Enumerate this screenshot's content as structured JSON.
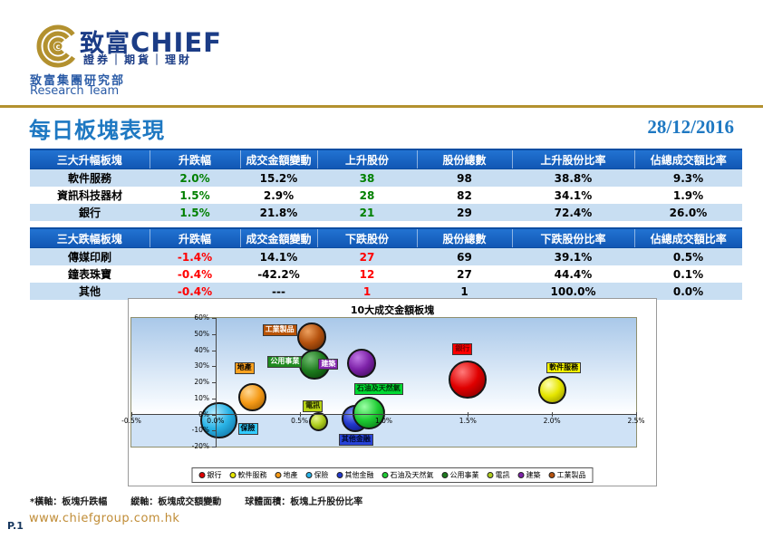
{
  "brand": {
    "name_cn": "致富",
    "name_en": "CHIEF",
    "tagline": "證券｜期貨｜理財",
    "dept_cn": "致富集團研究部",
    "dept_en": "Research Team",
    "gold_color": "#b3912f",
    "blue_color": "#1b3c86"
  },
  "page": {
    "title": "每日板塊表現",
    "date": "28/12/2016",
    "title_color": "#1e78c2"
  },
  "tables": {
    "gainers": {
      "headers": [
        "三大升幅板塊",
        "升跌幅",
        "成交金額變動",
        "上升股份",
        "股份總數",
        "上升股份比率",
        "佔總成交額比率"
      ],
      "rows": [
        [
          "軟件服務",
          "2.0%",
          "15.2%",
          "38",
          "98",
          "38.8%",
          "9.3%"
        ],
        [
          "資訊科技器材",
          "1.5%",
          "2.9%",
          "28",
          "82",
          "34.1%",
          "1.9%"
        ],
        [
          "銀行",
          "1.5%",
          "21.8%",
          "21",
          "29",
          "72.4%",
          "26.0%"
        ]
      ],
      "accent_color": "#008000"
    },
    "losers": {
      "headers": [
        "三大跌幅板塊",
        "升跌幅",
        "成交金額變動",
        "下跌股份",
        "股份總數",
        "下跌股份比率",
        "佔總成交額比率"
      ],
      "rows": [
        [
          "傳媒印刷",
          "-1.4%",
          "14.1%",
          "27",
          "69",
          "39.1%",
          "0.5%"
        ],
        [
          "鐘表珠寶",
          "-0.4%",
          "-42.2%",
          "12",
          "27",
          "44.4%",
          "0.1%"
        ],
        [
          "其他",
          "-0.4%",
          "---",
          "1",
          "1",
          "100.0%",
          "0.0%"
        ]
      ],
      "accent_color": "#ff0000"
    }
  },
  "chart_data": {
    "type": "scatter",
    "subtype": "bubble",
    "title": "10大成交金額板塊",
    "xlabel": "板塊升跌幅",
    "ylabel": "板塊成交額變動",
    "size_label": "板塊上升股份比率",
    "xlim": [
      -0.5,
      2.5
    ],
    "ylim": [
      -20,
      60
    ],
    "x_ticks": [
      "-0.5%",
      "0.0%",
      "0.5%",
      "1.0%",
      "1.5%",
      "2.0%",
      "2.5%"
    ],
    "y_ticks": [
      "60%",
      "50%",
      "40%",
      "30%",
      "20%",
      "10%",
      "0%",
      "-10%",
      "-20%"
    ],
    "grid": false,
    "legend_position": "bottom",
    "series": [
      {
        "name": "銀行",
        "x": 1.5,
        "y": 21.8,
        "size": 72.4,
        "color": "#e00000",
        "light": "#ff7a7a",
        "dark": "#7a0000",
        "label_bg": "#ff0000",
        "label_fg": "#7a0000",
        "label_dx": -17,
        "label_dy": -40,
        "z": 9
      },
      {
        "name": "軟件服務",
        "x": 2.0,
        "y": 15.2,
        "size": 38.8,
        "color": "#e6e600",
        "light": "#ffffb4",
        "dark": "#8f8f00",
        "label_bg": "#ffff00",
        "label_fg": "#000000",
        "label_dx": -6,
        "label_dy": -31,
        "z": 10
      },
      {
        "name": "地產",
        "x": 0.22,
        "y": 10.8,
        "size": 39.0,
        "color": "#f59a17",
        "light": "#ffd894",
        "dark": "#9e5c00",
        "label_bg": "#ffa21f",
        "label_fg": "#000000",
        "label_dx": -20,
        "label_dy": -38,
        "z": 4
      },
      {
        "name": "保險",
        "x": 0.02,
        "y": -3.5,
        "size": 66.0,
        "color": "#29b3e6",
        "light": "#b4eaff",
        "dark": "#0c6a9c",
        "label_bg": "#33ccff",
        "label_fg": "#000000",
        "label_dx": 21,
        "label_dy": 3,
        "z": 5
      },
      {
        "name": "其他金融",
        "x": 0.83,
        "y": -2.8,
        "size": 37.0,
        "color": "#2238cc",
        "light": "#8494f2",
        "dark": "#0a1470",
        "label_bg": "#2743d9",
        "label_fg": "#00082a",
        "label_dx": -18,
        "label_dy": 17,
        "z": 6
      },
      {
        "name": "石油及天然氣",
        "x": 0.91,
        "y": 0.6,
        "size": 53.0,
        "color": "#1ecc33",
        "light": "#9cffa6",
        "dark": "#076f14",
        "label_bg": "#00d832",
        "label_fg": "#002a06",
        "label_dx": -16,
        "label_dy": -33,
        "z": 7
      },
      {
        "name": "公用事業",
        "x": 0.59,
        "y": 31.0,
        "size": 47.0,
        "color": "#1d7a1d",
        "light": "#72bd72",
        "dark": "#073f07",
        "label_bg": "#1f8a1f",
        "label_fg": "#ffffff",
        "label_dx": -52,
        "label_dy": -9,
        "z": 3
      },
      {
        "name": "電訊",
        "x": 0.61,
        "y": -4.4,
        "size": 18.0,
        "color": "#aecc1e",
        "light": "#e6f58e",
        "dark": "#5d750a",
        "label_bg": "#b8d414",
        "label_fg": "#1a2000",
        "label_dx": -17,
        "label_dy": -23,
        "z": 8
      },
      {
        "name": "建築",
        "x": 0.87,
        "y": 32.0,
        "size": 42.0,
        "color": "#7d22a8",
        "light": "#c077e6",
        "dark": "#3c0a57",
        "label_bg": "#8224ad",
        "label_fg": "#ffffff",
        "label_dx": -48,
        "label_dy": -5,
        "z": 2
      },
      {
        "name": "工業製品",
        "x": 0.57,
        "y": 48.0,
        "size": 42.0,
        "color": "#b5520e",
        "light": "#eda05e",
        "dark": "#5e2703",
        "label_bg": "#b85306",
        "label_fg": "#ffffff",
        "label_dx": -54,
        "label_dy": -14,
        "z": 1
      }
    ]
  },
  "footnote": {
    "x_note": "*橫軸：板塊升跌幅",
    "y_note": "縱軸：板塊成交額變動",
    "size_note": "球體面積：板塊上升股份比率"
  },
  "footer": {
    "page_no": "P.1",
    "website": "www.chiefgroup.com.hk"
  }
}
